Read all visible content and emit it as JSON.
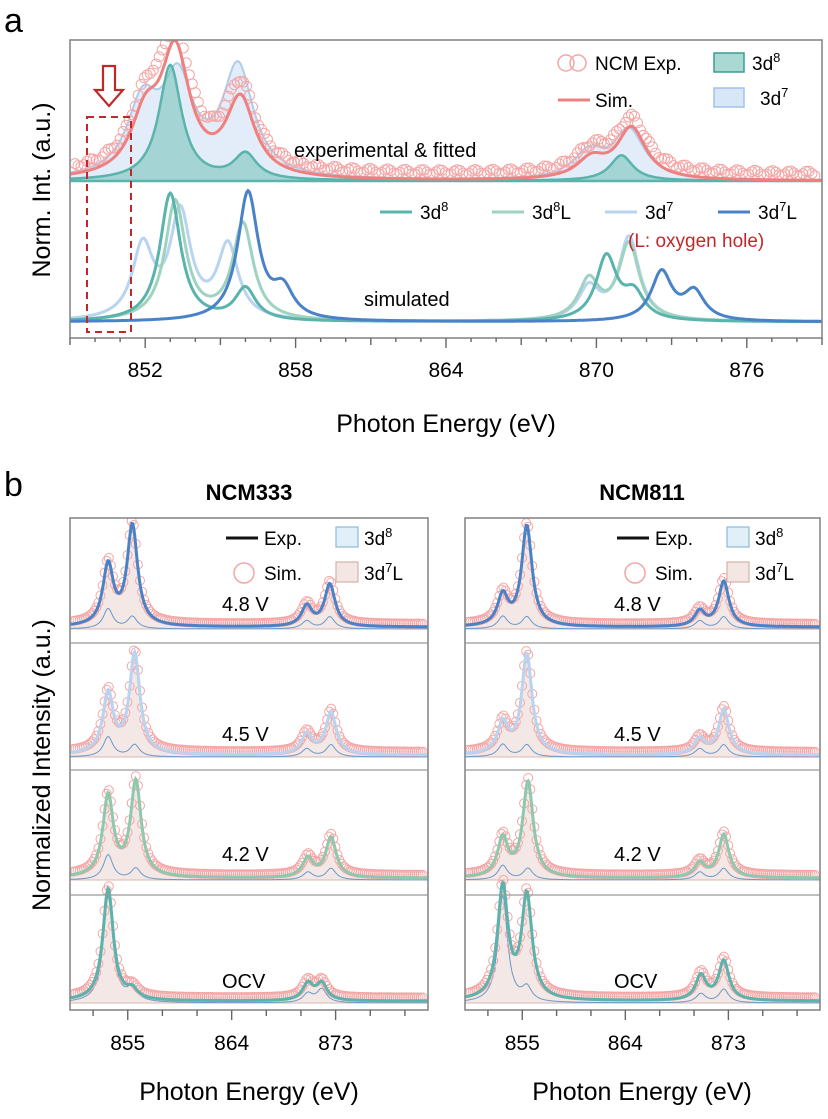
{
  "panel_a": {
    "panel_letter": "a",
    "ylabel": "Norm. Int. (a.u.)",
    "xlabel": "Photon Energy (eV)",
    "x_ticks": [
      "852",
      "858",
      "864",
      "870",
      "876"
    ],
    "annotation_top": "experimental & fitted",
    "annotation_bottom": "simulated",
    "oxygen_hole_note": "(L: oxygen hole)",
    "legend_top": [
      "NCM Exp.",
      "Sim.",
      "3d",
      "3d"
    ],
    "legend_top_sup": [
      "",
      "",
      "8",
      "7"
    ],
    "legend_bottom": [
      "3d",
      "3d",
      "3d",
      "3d"
    ],
    "legend_bottom_sup": [
      "8",
      "8",
      "7",
      "7"
    ],
    "legend_bottom_suffix": [
      "",
      "L",
      "",
      "L"
    ]
  },
  "panel_b": {
    "panel_letter": "b",
    "ylabel": "Normalized Intensity (a.u.)",
    "xlabel": "Photon Energy (eV)",
    "x_ticks": [
      "855",
      "864",
      "873"
    ],
    "legend": [
      "Exp.",
      "3d",
      "Sim.",
      "3d"
    ],
    "legend_sup": [
      "",
      "8",
      "",
      "7"
    ],
    "legend_suffix": [
      "",
      "",
      "",
      "L"
    ],
    "subplots": [
      {
        "title": "NCM333",
        "voltages": [
          "4.8 V",
          "4.5 V",
          "4.2 V",
          "OCV"
        ]
      },
      {
        "title": "NCM811",
        "voltages": [
          "4.8 V",
          "4.5 V",
          "4.2 V",
          "OCV"
        ]
      }
    ]
  },
  "colors": {
    "exp": "#f08c8c",
    "sim": "#f08080",
    "d8": "#5ab4ac",
    "d8L": "#9fd3c0",
    "d7": "#b8d4f0",
    "d7L": "#4a82c8",
    "fill_d8": "#d9eef8",
    "fill_d7L": "#f2e4e1",
    "highlight": "#c0282a"
  },
  "chart_data": [
    {
      "type": "line",
      "title": "",
      "xlabel": "Photon Energy (eV)",
      "ylabel": "Norm. Int. (a.u.)",
      "xlim": [
        849,
        879
      ],
      "series": [
        {
          "name": "NCM Exp.",
          "peaks": [
            [
              852.0,
              0.45
            ],
            [
              853.2,
              1.0
            ],
            [
              855.8,
              0.65
            ],
            [
              869.8,
              0.17
            ],
            [
              871.4,
              0.42
            ]
          ]
        },
        {
          "name": "Sim.",
          "peaks": [
            [
              852.0,
              0.42
            ],
            [
              853.2,
              0.95
            ],
            [
              855.8,
              0.6
            ],
            [
              869.8,
              0.15
            ],
            [
              871.4,
              0.4
            ]
          ]
        },
        {
          "name": "3d",
          "peaks": [
            [
              853.0,
              0.9
            ],
            [
              856.0,
              0.2
            ],
            [
              871.0,
              0.2
            ]
          ]
        },
        {
          "name": "3d",
          "peaks": [
            [
              851.9,
              0.55
            ],
            [
              853.3,
              0.72
            ],
            [
              855.7,
              0.85
            ],
            [
              869.7,
              0.2
            ],
            [
              871.3,
              0.38
            ]
          ]
        },
        {
          "name": "3d",
          "peaks": [
            [
              853.0,
              1.0
            ],
            [
              856.0,
              0.25
            ],
            [
              870.4,
              0.5
            ],
            [
              871.5,
              0.2
            ]
          ]
        },
        {
          "name": "3d",
          "peaks": [
            [
              853.2,
              0.93
            ],
            [
              855.9,
              0.75
            ],
            [
              869.7,
              0.31
            ],
            [
              871.3,
              0.6
            ]
          ]
        },
        {
          "name": "3d",
          "peaks": [
            [
              851.9,
              0.56
            ],
            [
              853.4,
              0.82
            ],
            [
              855.3,
              0.57
            ],
            [
              869.7,
              0.25
            ],
            [
              871.3,
              0.65
            ]
          ]
        },
        {
          "name": "3d",
          "peaks": [
            [
              856.1,
              1.0
            ],
            [
              857.5,
              0.22
            ],
            [
              872.6,
              0.38
            ],
            [
              873.9,
              0.22
            ]
          ]
        }
      ],
      "annotations": [
        "experimental & fitted",
        "simulated",
        "(L: oxygen hole)"
      ]
    },
    {
      "type": "line",
      "title": "NCM333",
      "xlabel": "Photon Energy (eV)",
      "ylabel": "Normalized Intensity (a.u.)",
      "xlim": [
        850,
        881
      ],
      "x_ticks": [
        855,
        864,
        873
      ],
      "series": [
        {
          "name": "4.8 V",
          "peaks": [
            [
              853.3,
              0.6
            ],
            [
              855.4,
              1.0
            ],
            [
              870.5,
              0.2
            ],
            [
              872.5,
              0.42
            ]
          ]
        },
        {
          "name": "4.5 V",
          "peaks": [
            [
              853.3,
              0.6
            ],
            [
              855.6,
              1.0
            ],
            [
              870.5,
              0.2
            ],
            [
              872.6,
              0.42
            ]
          ]
        },
        {
          "name": "4.2 V",
          "peaks": [
            [
              853.3,
              0.85
            ],
            [
              855.7,
              1.0
            ],
            [
              870.6,
              0.2
            ],
            [
              872.6,
              0.42
            ]
          ]
        },
        {
          "name": "OCV",
          "peaks": [
            [
              853.3,
              1.0
            ],
            [
              855.4,
              0.08
            ],
            [
              870.6,
              0.15
            ],
            [
              871.8,
              0.15
            ]
          ]
        }
      ]
    },
    {
      "type": "line",
      "title": "NCM811",
      "xlabel": "Photon Energy (eV)",
      "ylabel": "Normalized Intensity (a.u.)",
      "xlim": [
        850,
        881
      ],
      "x_ticks": [
        855,
        864,
        873
      ],
      "series": [
        {
          "name": "4.8 V",
          "peaks": [
            [
              853.3,
              0.3
            ],
            [
              855.4,
              1.0
            ],
            [
              870.5,
              0.15
            ],
            [
              872.6,
              0.45
            ]
          ]
        },
        {
          "name": "4.5 V",
          "peaks": [
            [
              853.3,
              0.3
            ],
            [
              855.4,
              1.0
            ],
            [
              870.5,
              0.15
            ],
            [
              872.6,
              0.45
            ]
          ]
        },
        {
          "name": "4.2 V",
          "peaks": [
            [
              853.3,
              0.4
            ],
            [
              855.5,
              1.0
            ],
            [
              870.5,
              0.15
            ],
            [
              872.6,
              0.45
            ]
          ]
        },
        {
          "name": "OCV",
          "peaks": [
            [
              853.3,
              1.0
            ],
            [
              855.4,
              0.92
            ],
            [
              870.6,
              0.22
            ],
            [
              872.6,
              0.35
            ]
          ]
        }
      ]
    }
  ]
}
